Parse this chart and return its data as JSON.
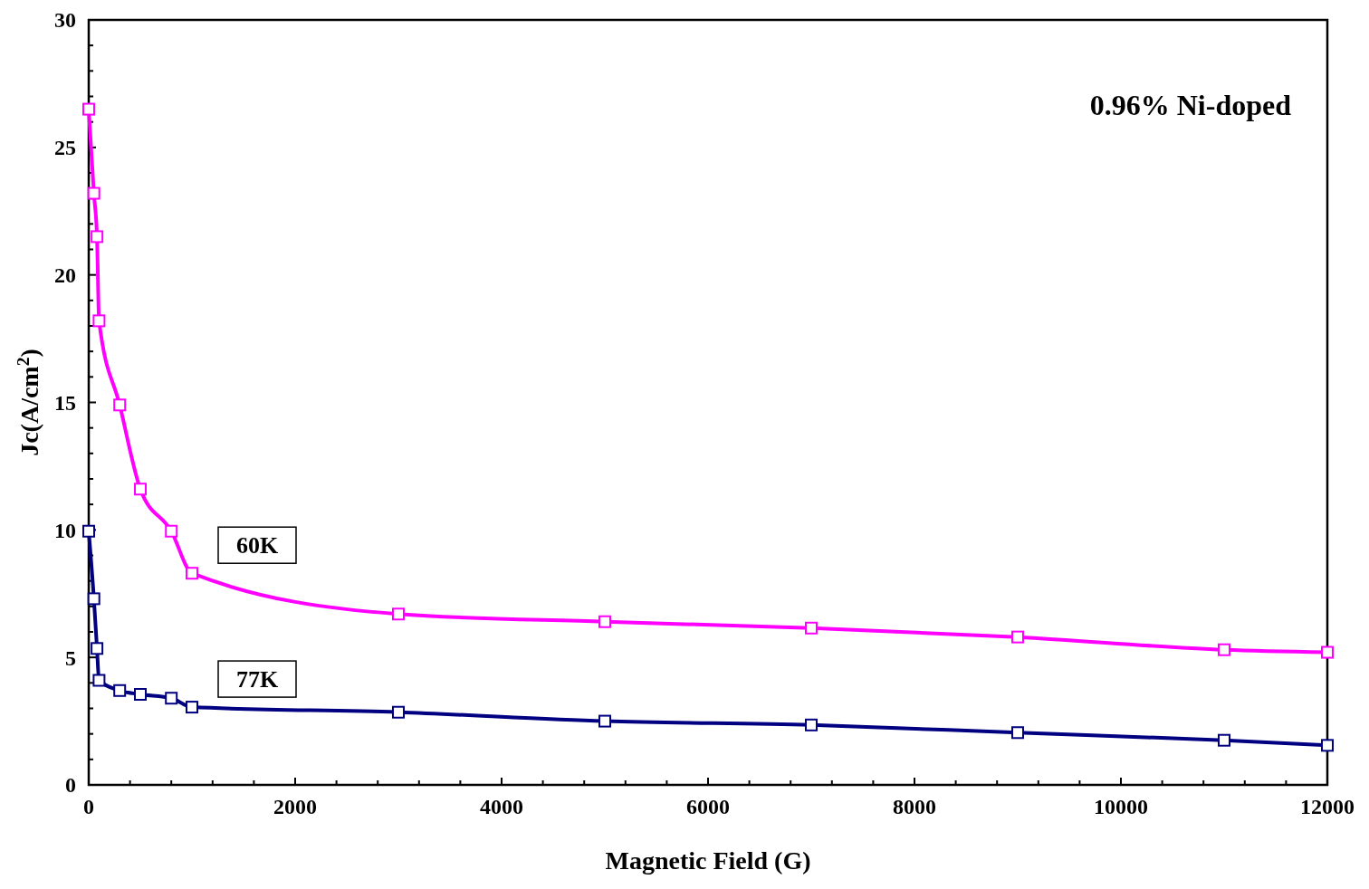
{
  "chart_data": {
    "type": "line",
    "xlabel": "Magnetic Field (G)",
    "ylabel": "Jc(A/cm$^{2}$)",
    "annotations": [
      "0.96% Ni-doped"
    ],
    "xlim": [
      0,
      12000
    ],
    "ylim": [
      0,
      30
    ],
    "xticks": [
      0,
      {
        "value": 400,
        "label": null
      },
      {
        "value": 800,
        "label": null
      },
      {
        "value": 1200,
        "label": null
      },
      {
        "value": 1600,
        "label": null
      },
      2000,
      {
        "value": 2400,
        "label": null
      },
      {
        "value": 2800,
        "label": null
      },
      {
        "value": 3200,
        "label": null
      },
      {
        "value": 3600,
        "label": null
      },
      4000,
      {
        "value": 4400,
        "label": null
      },
      {
        "value": 4800,
        "label": null
      },
      {
        "value": 5200,
        "label": null
      },
      {
        "value": 5600,
        "label": null
      },
      6000,
      {
        "value": 6400,
        "label": null
      },
      {
        "value": 6800,
        "label": null
      },
      {
        "value": 7200,
        "label": null
      },
      {
        "value": 7600,
        "label": null
      },
      8000,
      {
        "value": 8400,
        "label": null
      },
      {
        "value": 8800,
        "label": null
      },
      {
        "value": 9200,
        "label": null
      },
      {
        "value": 9600,
        "label": null
      },
      10000,
      {
        "value": 10400,
        "label": null
      },
      {
        "value": 10800,
        "label": null
      },
      {
        "value": 11200,
        "label": null
      },
      {
        "value": 11600,
        "label": null
      },
      12000
    ],
    "yticks": [
      0,
      {
        "value": 1,
        "label": null
      },
      {
        "value": 2,
        "label": null
      },
      {
        "value": 3,
        "label": null
      },
      {
        "value": 4,
        "label": null
      },
      5,
      {
        "value": 6,
        "label": null
      },
      {
        "value": 7,
        "label": null
      },
      {
        "value": 8,
        "label": null
      },
      {
        "value": 9,
        "label": null
      },
      10,
      {
        "value": 11,
        "label": null
      },
      {
        "value": 12,
        "label": null
      },
      {
        "value": 13,
        "label": null
      },
      {
        "value": 14,
        "label": null
      },
      15,
      {
        "value": 16,
        "label": null
      },
      {
        "value": 17,
        "label": null
      },
      {
        "value": 18,
        "label": null
      },
      {
        "value": 19,
        "label": null
      },
      20,
      {
        "value": 21,
        "label": null
      },
      {
        "value": 22,
        "label": null
      },
      {
        "value": 23,
        "label": null
      },
      {
        "value": 24,
        "label": null
      },
      25,
      {
        "value": 26,
        "label": null
      },
      {
        "value": 27,
        "label": null
      },
      {
        "value": 28,
        "label": null
      },
      {
        "value": 29,
        "label": null
      },
      30
    ],
    "x": [
      0,
      50,
      80,
      100,
      300,
      500,
      800,
      1000,
      3000,
      5000,
      7000,
      9000,
      11000,
      12000
    ],
    "series": [
      {
        "name": "60K",
        "color": "#ff00ff",
        "values": [
          26.5,
          23.2,
          21.5,
          18.2,
          14.9,
          11.6,
          9.95,
          8.3,
          6.7,
          6.4,
          6.15,
          5.8,
          5.3,
          5.2
        ]
      },
      {
        "name": "77K",
        "color": "#000080",
        "values": [
          9.95,
          7.3,
          5.35,
          4.1,
          3.7,
          3.55,
          3.4,
          3.05,
          2.85,
          2.5,
          2.35,
          2.05,
          1.75,
          1.55
        ]
      }
    ],
    "marker": "square",
    "line_style": "solid",
    "grid": false
  }
}
